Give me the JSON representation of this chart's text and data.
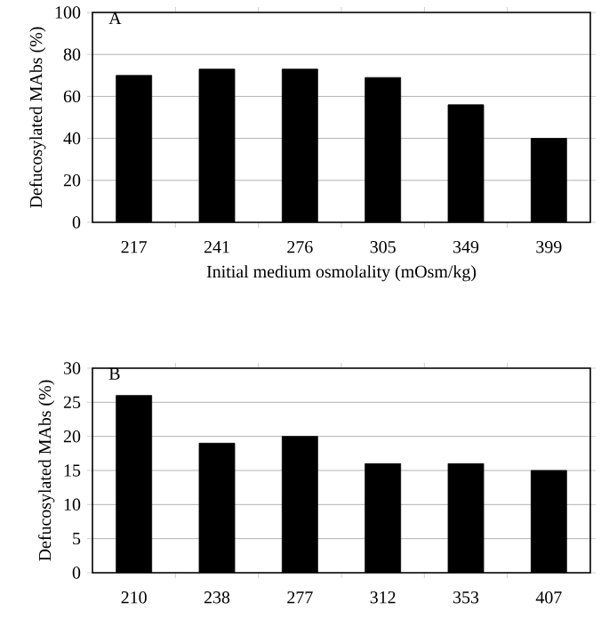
{
  "chart_data": [
    {
      "type": "bar",
      "title": "A",
      "xlabel": "Initial medium osmolality (mOsm/kg)",
      "ylabel": "Defucosylated MAbs  (%)",
      "categories": [
        "217",
        "241",
        "276",
        "305",
        "349",
        "399"
      ],
      "values": [
        70,
        73,
        73,
        69,
        56,
        40
      ],
      "color": "#000000",
      "ylim": [
        0,
        100
      ],
      "yticks": [
        0,
        20,
        40,
        60,
        80,
        100
      ],
      "grid": "y"
    },
    {
      "type": "bar",
      "title": "B",
      "ylabel": "Defucosylated MAbs  (%)",
      "categories": [
        "210",
        "238",
        "277",
        "312",
        "353",
        "407"
      ],
      "values": [
        26,
        19,
        20,
        16,
        16,
        15
      ],
      "color": "#000000",
      "ylim": [
        0,
        30
      ],
      "yticks": [
        0,
        5,
        10,
        15,
        20,
        25,
        30
      ],
      "grid": "y"
    }
  ]
}
